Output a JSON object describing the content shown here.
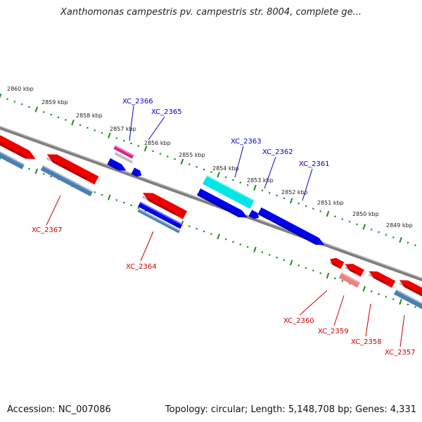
{
  "title": "Xanthomonas campestris pv. campestris str. 8004, complete ge...",
  "footer": {
    "accession": "Accession: NC_007086",
    "summary": "Topology: circular; Length: 5,148,708 bp; Genes: 4,331"
  },
  "colors": {
    "backbone": "#7f7f7f",
    "tick": "#1f8a1f",
    "forward_gene": "#0000ee",
    "reverse_gene": "#ee0000",
    "pseudo_forward": "#00e5e5",
    "pseudo_reverse": "#f08080",
    "operon_blue": "#4a7fb0",
    "feature_magenta": "#e0208a",
    "forward_label": "#0000cc",
    "reverse_label": "#cc0000"
  },
  "kbp_labels": [
    "2860 kbp",
    "2859 kbp",
    "2858 kbp",
    "2857 kbp",
    "2856 kbp",
    "2855 kbp",
    "2854 kbp",
    "2853 kbp",
    "2852 kbp",
    "2851 kbp",
    "2850 kbp",
    "2849 kbp"
  ],
  "forward_genes": [
    "XC_2366",
    "XC_2365",
    "XC_2363",
    "XC_2362",
    "XC_2361"
  ],
  "reverse_genes": [
    "XC_2367",
    "XC_2364",
    "XC_2360",
    "XC_2359",
    "XC_2358",
    "XC_2357"
  ]
}
